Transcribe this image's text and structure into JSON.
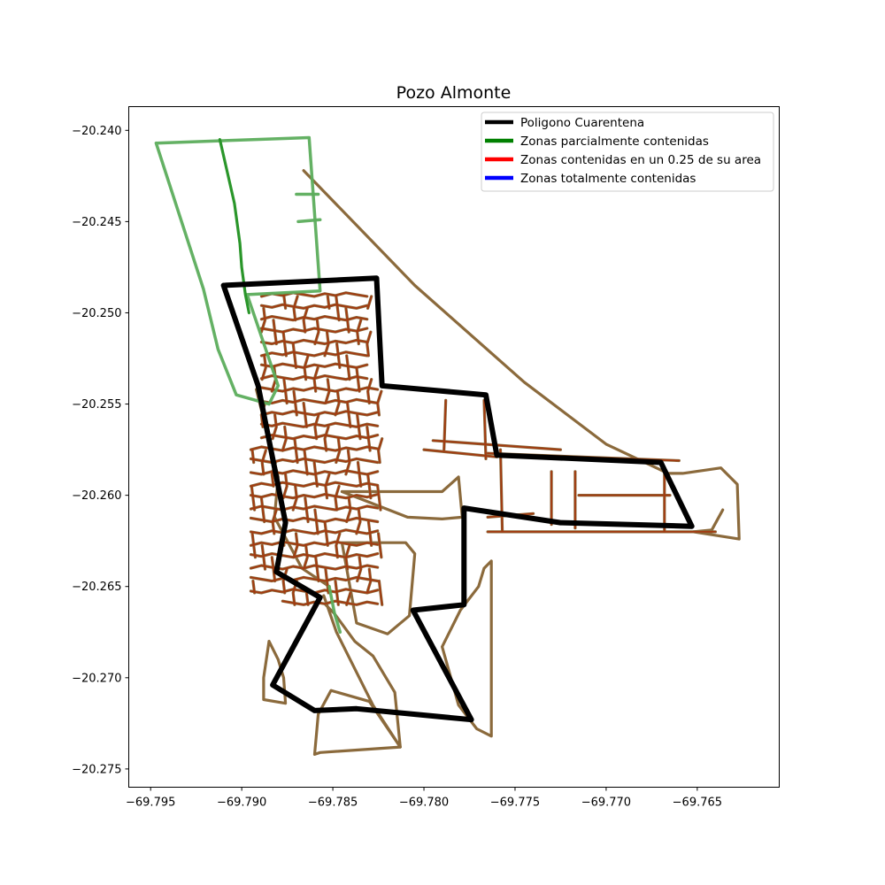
{
  "chart_data": {
    "type": "map",
    "title": "Pozo Almonte",
    "xlim": [
      -69.7962,
      -69.7605
    ],
    "ylim": [
      -20.276,
      -20.2387
    ],
    "x_ticks": [
      {
        "value": -69.795,
        "label": "−69.795"
      },
      {
        "value": -69.79,
        "label": "−69.790"
      },
      {
        "value": -69.785,
        "label": "−69.785"
      },
      {
        "value": -69.78,
        "label": "−69.780"
      },
      {
        "value": -69.775,
        "label": "−69.775"
      },
      {
        "value": -69.77,
        "label": "−69.770"
      },
      {
        "value": -69.765,
        "label": "−69.765"
      }
    ],
    "y_ticks": [
      {
        "value": -20.24,
        "label": "−20.240"
      },
      {
        "value": -20.245,
        "label": "−20.245"
      },
      {
        "value": -20.25,
        "label": "−20.250"
      },
      {
        "value": -20.255,
        "label": "−20.255"
      },
      {
        "value": -20.26,
        "label": "−20.260"
      },
      {
        "value": -20.265,
        "label": "−20.265"
      },
      {
        "value": -20.27,
        "label": "−20.270"
      },
      {
        "value": -20.275,
        "label": "−20.275"
      }
    ],
    "legend_position": "top-right",
    "legend": [
      {
        "label": "Poligono Cuarentena",
        "color": "#000000"
      },
      {
        "label": "Zonas parcialmente contenidas",
        "color": "#008000"
      },
      {
        "label": "Zonas contenidas en un 0.25 de su area",
        "color": "#ff0000"
      },
      {
        "label": "Zonas totalmente contenidas",
        "color": "#0000ff"
      }
    ],
    "colors": {
      "quarantine": "#000000",
      "partial": "#5cad5c",
      "partial_dark": "#2a962a",
      "road_outer": "#8b6a3c",
      "road_inner": "#a33a10"
    },
    "series": [
      {
        "name": "Poligono Cuarentena",
        "paths": [
          [
            [
              -69.791,
              -20.2485
            ],
            [
              -69.7826,
              -20.2481
            ],
            [
              -69.7823,
              -20.254
            ],
            [
              -69.7766,
              -20.2545
            ],
            [
              -69.776,
              -20.2578
            ],
            [
              -69.767,
              -20.2582
            ],
            [
              -69.7653,
              -20.2617
            ],
            [
              -69.7725,
              -20.2615
            ],
            [
              -69.7778,
              -20.2607
            ],
            [
              -69.7778,
              -20.266
            ],
            [
              -69.7806,
              -20.2663
            ],
            [
              -69.7774,
              -20.2723
            ],
            [
              -69.7837,
              -20.2717
            ],
            [
              -69.786,
              -20.2718
            ],
            [
              -69.7883,
              -20.2704
            ],
            [
              -69.7857,
              -20.2656
            ],
            [
              -69.7881,
              -20.2642
            ],
            [
              -69.7876,
              -20.2615
            ],
            [
              -69.7891,
              -20.254
            ],
            [
              -69.791,
              -20.2485
            ]
          ]
        ]
      },
      {
        "name": "Zonas parcialmente contenidas",
        "paths": [
          [
            [
              -69.7947,
              -20.2407
            ],
            [
              -69.7863,
              -20.2404
            ],
            [
              -69.7857,
              -20.2488
            ],
            [
              -69.7897,
              -20.249
            ],
            [
              -69.788,
              -20.254
            ],
            [
              -69.7885,
              -20.255
            ],
            [
              -69.7903,
              -20.2545
            ],
            [
              -69.7913,
              -20.252
            ],
            [
              -69.7921,
              -20.2487
            ],
            [
              -69.7947,
              -20.2407
            ]
          ],
          [
            [
              -69.787,
              -20.2435
            ],
            [
              -69.7858,
              -20.2435
            ]
          ],
          [
            [
              -69.7869,
              -20.245
            ],
            [
              -69.7857,
              -20.2449
            ]
          ],
          [
            [
              -69.7852,
              -20.265
            ],
            [
              -69.7849,
              -20.2665
            ],
            [
              -69.7846,
              -20.2675
            ]
          ]
        ]
      },
      {
        "name": "Zonas parcialmente contenidas (dark)",
        "paths": [
          [
            [
              -69.7912,
              -20.2405
            ],
            [
              -69.7904,
              -20.244
            ],
            [
              -69.7901,
              -20.2462
            ],
            [
              -69.79,
              -20.2475
            ],
            [
              -69.7898,
              -20.249
            ],
            [
              -69.7896,
              -20.25
            ]
          ]
        ]
      },
      {
        "name": "Zonas contenidas en un 0.25 de su area",
        "outer_paths": [
          [
            [
              -69.7866,
              -20.2422
            ],
            [
              -69.7805,
              -20.2485
            ],
            [
              -69.7745,
              -20.2538
            ],
            [
              -69.77,
              -20.2572
            ],
            [
              -69.7666,
              -20.2588
            ],
            [
              -69.7658,
              -20.2588
            ],
            [
              -69.7637,
              -20.2585
            ],
            [
              -69.7628,
              -20.2594
            ],
            [
              -69.7627,
              -20.2624
            ],
            [
              -69.7652,
              -20.262
            ],
            [
              -69.7642,
              -20.2619
            ],
            [
              -69.7636,
              -20.2608
            ]
          ],
          [
            [
              -69.7892,
              -20.2542
            ],
            [
              -69.788,
              -20.259
            ],
            [
              -69.7882,
              -20.2612
            ],
            [
              -69.7867,
              -20.264
            ],
            [
              -69.7852,
              -20.265
            ]
          ],
          [
            [
              -69.7855,
              -20.2655
            ],
            [
              -69.7848,
              -20.2675
            ],
            [
              -69.7828,
              -20.2715
            ],
            [
              -69.7813,
              -20.2738
            ],
            [
              -69.7816,
              -20.2708
            ],
            [
              -69.7828,
              -20.2688
            ],
            [
              -69.7838,
              -20.268
            ],
            [
              -69.7849,
              -20.2665
            ],
            [
              -69.7854,
              -20.266
            ]
          ],
          [
            [
              -69.786,
              -20.2742
            ],
            [
              -69.7858,
              -20.272
            ],
            [
              -69.7851,
              -20.2707
            ],
            [
              -69.783,
              -20.2713
            ],
            [
              -69.7813,
              -20.2738
            ],
            [
              -69.7857,
              -20.2741
            ],
            [
              -69.786,
              -20.2742
            ]
          ],
          [
            [
              -69.7771,
              -20.2728
            ],
            [
              -69.7781,
              -20.2715
            ],
            [
              -69.779,
              -20.2683
            ],
            [
              -69.778,
              -20.2663
            ],
            [
              -69.777,
              -20.265
            ],
            [
              -69.7767,
              -20.264
            ],
            [
              -69.7763,
              -20.2636
            ],
            [
              -69.7763,
              -20.2732
            ],
            [
              -69.7771,
              -20.2728
            ]
          ],
          [
            [
              -69.7885,
              -20.268
            ],
            [
              -69.7888,
              -20.27
            ],
            [
              -69.7888,
              -20.2712
            ],
            [
              -69.7876,
              -20.2714
            ],
            [
              -69.7877,
              -20.27
            ],
            [
              -69.788,
              -20.269
            ],
            [
              -69.7885,
              -20.268
            ]
          ],
          [
            [
              -69.7845,
              -20.2598
            ],
            [
              -69.7809,
              -20.2598
            ],
            [
              -69.779,
              -20.2598
            ],
            [
              -69.7781,
              -20.259
            ],
            [
              -69.7779,
              -20.2612
            ],
            [
              -69.779,
              -20.2613
            ],
            [
              -69.7809,
              -20.2612
            ],
            [
              -69.7845,
              -20.2598
            ]
          ],
          [
            [
              -69.7845,
              -20.2626
            ],
            [
              -69.7837,
              -20.267
            ],
            [
              -69.782,
              -20.2676
            ],
            [
              -69.7808,
              -20.2666
            ],
            [
              -69.7805,
              -20.2632
            ],
            [
              -69.781,
              -20.2626
            ],
            [
              -69.7845,
              -20.2626
            ]
          ]
        ],
        "street_grid": {
          "x_range": [
            -69.7895,
            -69.7825
          ],
          "y_range": [
            -20.266,
            -20.249
          ]
        }
      }
    ]
  }
}
